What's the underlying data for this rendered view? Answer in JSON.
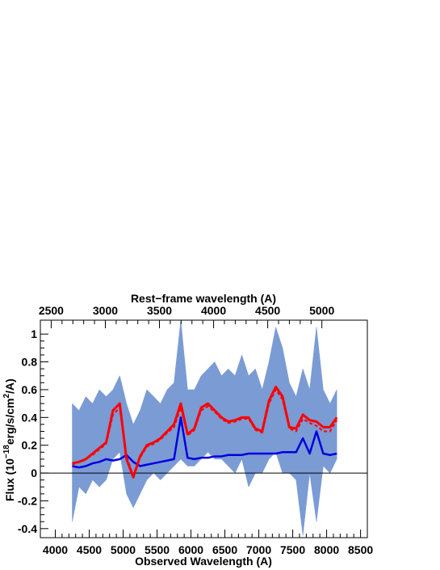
{
  "chart_data": {
    "type": "spectrum",
    "xlabel": "Observed Wavelength (A)",
    "x2label": "Rest−frame wavelength (A)",
    "ylabel_parts": [
      "Flux (10",
      "−18",
      "erg/s/cm",
      "2",
      "/A)"
    ],
    "xlim": [
      3780,
      8600
    ],
    "xticks": [
      4000,
      4500,
      5000,
      5500,
      6000,
      6500,
      7000,
      7500,
      8000,
      8500
    ],
    "x2lim": [
      2400,
      5420
    ],
    "x2ticks": [
      2500,
      3000,
      3500,
      4000,
      4500,
      5000
    ],
    "ylim": [
      -0.465,
      1.1
    ],
    "yticks": [
      -0.4,
      -0.2,
      0,
      0.2,
      0.4,
      0.6,
      0.8,
      1
    ],
    "band": {
      "color": "#7b9bd4",
      "x": [
        4250,
        4350,
        4450,
        4550,
        4650,
        4750,
        4850,
        4950,
        5050,
        5150,
        5250,
        5350,
        5450,
        5550,
        5650,
        5750,
        5850,
        5950,
        6050,
        6150,
        6250,
        6350,
        6450,
        6550,
        6650,
        6750,
        6850,
        6950,
        7050,
        7150,
        7250,
        7350,
        7450,
        7550,
        7650,
        7750,
        7850,
        7950,
        8050,
        8150
      ],
      "high": [
        0.5,
        0.45,
        0.55,
        0.5,
        0.6,
        0.55,
        0.6,
        0.7,
        0.5,
        0.35,
        0.45,
        0.6,
        0.55,
        0.5,
        0.6,
        0.65,
        1.1,
        0.6,
        0.6,
        0.7,
        0.75,
        0.8,
        0.7,
        0.75,
        0.7,
        0.85,
        0.7,
        0.75,
        0.6,
        0.8,
        1.05,
        0.9,
        0.65,
        0.55,
        0.75,
        0.6,
        1.05,
        0.6,
        0.5,
        0.6
      ],
      "low": [
        -0.35,
        -0.1,
        -0.15,
        -0.05,
        -0.1,
        -0.05,
        0.1,
        0.15,
        -0.15,
        -0.25,
        -0.15,
        -0.05,
        0,
        -0.05,
        0,
        0.05,
        0.1,
        0.05,
        0.05,
        0.1,
        0.15,
        0.1,
        0.1,
        0.05,
        0,
        0.1,
        -0.1,
        0,
        0,
        0.1,
        0.15,
        0,
        0,
        -0.05,
        -0.45,
        0,
        -0.35,
        0.05,
        0,
        0.1
      ]
    },
    "series": [
      {
        "color": "#0000e0",
        "width": 2.5,
        "dash": false,
        "x": [
          4250,
          4350,
          4450,
          4550,
          4650,
          4750,
          4850,
          4950,
          5050,
          5150,
          5250,
          5350,
          5450,
          5550,
          5650,
          5750,
          5850,
          5950,
          6050,
          6150,
          6250,
          6350,
          6450,
          6550,
          6650,
          6750,
          6850,
          6950,
          7050,
          7150,
          7250,
          7350,
          7450,
          7550,
          7650,
          7750,
          7850,
          7950,
          8050,
          8150
        ],
        "values": [
          0.05,
          0.04,
          0.05,
          0.07,
          0.08,
          0.1,
          0.09,
          0.1,
          0.13,
          0.08,
          0.05,
          0.06,
          0.07,
          0.08,
          0.09,
          0.1,
          0.4,
          0.11,
          0.1,
          0.11,
          0.11,
          0.12,
          0.12,
          0.13,
          0.13,
          0.13,
          0.14,
          0.14,
          0.14,
          0.14,
          0.14,
          0.15,
          0.15,
          0.15,
          0.25,
          0.14,
          0.3,
          0.14,
          0.13,
          0.14
        ]
      },
      {
        "color": "#ff0000",
        "width": 2,
        "dash": true,
        "x": [
          4250,
          4350,
          4450,
          4550,
          4650,
          4750,
          4850,
          4950,
          5050,
          5150,
          5250,
          5350,
          5450,
          5550,
          5650,
          5750,
          5850,
          5950,
          6050,
          6150,
          6250,
          6350,
          6450,
          6550,
          6650,
          6750,
          6850,
          6950,
          7050,
          7150,
          7250,
          7350,
          7450,
          7550,
          7650,
          7750,
          7850,
          7950,
          8050,
          8150
        ],
        "values": [
          0.06,
          0.08,
          0.1,
          0.13,
          0.17,
          0.21,
          0.42,
          0.47,
          0.12,
          -0.02,
          0.11,
          0.19,
          0.21,
          0.24,
          0.29,
          0.33,
          0.47,
          0.27,
          0.31,
          0.45,
          0.48,
          0.44,
          0.39,
          0.36,
          0.37,
          0.39,
          0.39,
          0.31,
          0.29,
          0.5,
          0.6,
          0.53,
          0.32,
          0.3,
          0.39,
          0.36,
          0.34,
          0.3,
          0.3,
          0.38
        ]
      },
      {
        "color": "#ff0000",
        "width": 3,
        "dash": false,
        "x": [
          4250,
          4350,
          4450,
          4550,
          4650,
          4750,
          4850,
          4950,
          5050,
          5150,
          5250,
          5350,
          5450,
          5550,
          5650,
          5750,
          5850,
          5950,
          6050,
          6150,
          6250,
          6350,
          6450,
          6550,
          6650,
          6750,
          6850,
          6950,
          7050,
          7150,
          7250,
          7350,
          7450,
          7550,
          7650,
          7750,
          7850,
          7950,
          8050,
          8150
        ],
        "values": [
          0.07,
          0.08,
          0.1,
          0.14,
          0.18,
          0.22,
          0.45,
          0.5,
          0.1,
          -0.03,
          0.12,
          0.2,
          0.22,
          0.25,
          0.3,
          0.35,
          0.5,
          0.28,
          0.32,
          0.47,
          0.5,
          0.45,
          0.4,
          0.37,
          0.38,
          0.4,
          0.4,
          0.32,
          0.3,
          0.52,
          0.62,
          0.55,
          0.33,
          0.32,
          0.42,
          0.38,
          0.37,
          0.33,
          0.33,
          0.4
        ]
      }
    ]
  }
}
